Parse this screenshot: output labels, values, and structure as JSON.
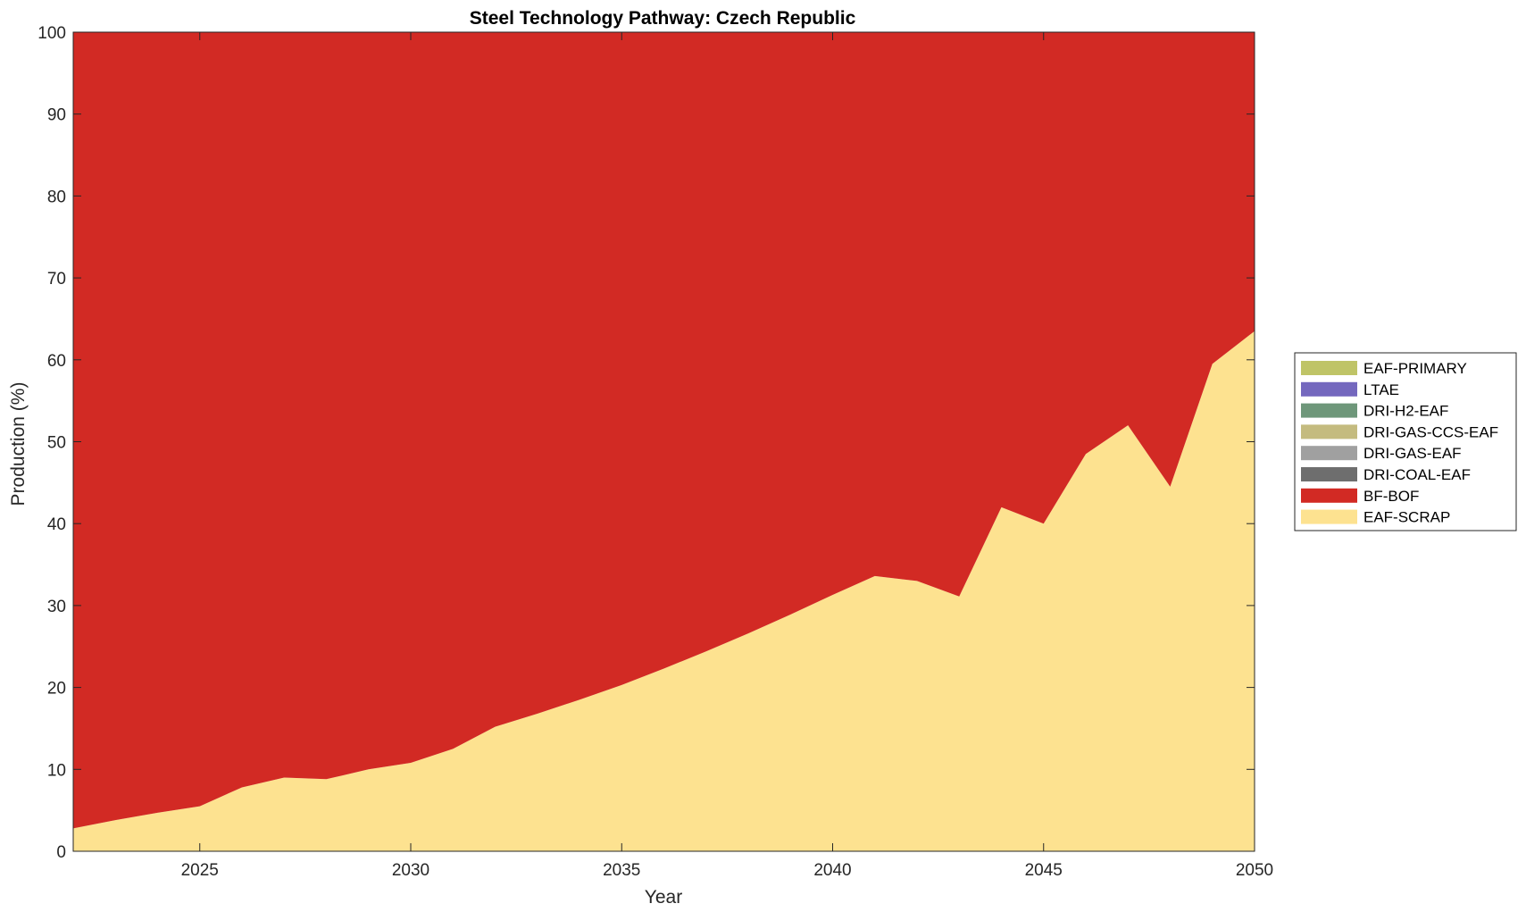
{
  "chart_data": {
    "type": "area",
    "stacked": true,
    "title": "Steel Technology Pathway: Czech Republic",
    "xlabel": "Year",
    "ylabel": "Production (%)",
    "xlim": [
      2022,
      2050
    ],
    "ylim": [
      0,
      100
    ],
    "xticks": [
      2025,
      2030,
      2035,
      2040,
      2045,
      2050
    ],
    "yticks": [
      0,
      10,
      20,
      30,
      40,
      50,
      60,
      70,
      80,
      90,
      100
    ],
    "grid": false,
    "legend_position": "right",
    "x": [
      2022,
      2023,
      2024,
      2025,
      2026,
      2027,
      2028,
      2029,
      2030,
      2031,
      2032,
      2033,
      2034,
      2035,
      2036,
      2037,
      2038,
      2039,
      2040,
      2041,
      2042,
      2043,
      2044,
      2045,
      2046,
      2047,
      2048,
      2049,
      2050
    ],
    "series": [
      {
        "name": "EAF-SCRAP",
        "color": "#FDE290",
        "values": [
          2.8,
          3.8,
          4.7,
          5.5,
          7.8,
          9.0,
          8.8,
          10.0,
          10.8,
          12.5,
          15.2,
          16.8,
          18.5,
          20.3,
          22.3,
          24.4,
          26.6,
          28.9,
          31.3,
          33.6,
          33.0,
          31.1,
          42.0,
          40.0,
          48.5,
          52.0,
          44.5,
          59.5,
          63.5
        ]
      },
      {
        "name": "BF-BOF",
        "color": "#D22A24",
        "values": [
          97.2,
          96.2,
          95.3,
          94.5,
          92.2,
          91.0,
          91.2,
          90.0,
          89.2,
          87.5,
          84.8,
          83.2,
          81.5,
          79.7,
          77.7,
          75.6,
          73.4,
          71.1,
          68.7,
          66.4,
          67.0,
          68.9,
          58.0,
          60.0,
          51.5,
          48.0,
          55.5,
          40.5,
          36.5
        ]
      },
      {
        "name": "DRI-COAL-EAF",
        "color": "#6E6E6E",
        "values": [
          0,
          0,
          0,
          0,
          0,
          0,
          0,
          0,
          0,
          0,
          0,
          0,
          0,
          0,
          0,
          0,
          0,
          0,
          0,
          0,
          0,
          0,
          0,
          0,
          0,
          0,
          0,
          0,
          0
        ]
      },
      {
        "name": "DRI-GAS-EAF",
        "color": "#A0A0A0",
        "values": [
          0,
          0,
          0,
          0,
          0,
          0,
          0,
          0,
          0,
          0,
          0,
          0,
          0,
          0,
          0,
          0,
          0,
          0,
          0,
          0,
          0,
          0,
          0,
          0,
          0,
          0,
          0,
          0,
          0
        ]
      },
      {
        "name": "DRI-GAS-CCS-EAF",
        "color": "#C4BB7F",
        "values": [
          0,
          0,
          0,
          0,
          0,
          0,
          0,
          0,
          0,
          0,
          0,
          0,
          0,
          0,
          0,
          0,
          0,
          0,
          0,
          0,
          0,
          0,
          0,
          0,
          0,
          0,
          0,
          0,
          0
        ]
      },
      {
        "name": "DRI-H2-EAF",
        "color": "#6E977A",
        "values": [
          0,
          0,
          0,
          0,
          0,
          0,
          0,
          0,
          0,
          0,
          0,
          0,
          0,
          0,
          0,
          0,
          0,
          0,
          0,
          0,
          0,
          0,
          0,
          0,
          0,
          0,
          0,
          0,
          0
        ]
      },
      {
        "name": "LTAE",
        "color": "#7468BE",
        "values": [
          0,
          0,
          0,
          0,
          0,
          0,
          0,
          0,
          0,
          0,
          0,
          0,
          0,
          0,
          0,
          0,
          0,
          0,
          0,
          0,
          0,
          0,
          0,
          0,
          0,
          0,
          0,
          0,
          0
        ]
      },
      {
        "name": "EAF-PRIMARY",
        "color": "#BFC467",
        "values": [
          0,
          0,
          0,
          0,
          0,
          0,
          0,
          0,
          0,
          0,
          0,
          0,
          0,
          0,
          0,
          0,
          0,
          0,
          0,
          0,
          0,
          0,
          0,
          0,
          0,
          0,
          0,
          0,
          0
        ]
      }
    ],
    "legend_order": [
      "EAF-PRIMARY",
      "LTAE",
      "DRI-H2-EAF",
      "DRI-GAS-CCS-EAF",
      "DRI-GAS-EAF",
      "DRI-COAL-EAF",
      "BF-BOF",
      "EAF-SCRAP"
    ]
  }
}
